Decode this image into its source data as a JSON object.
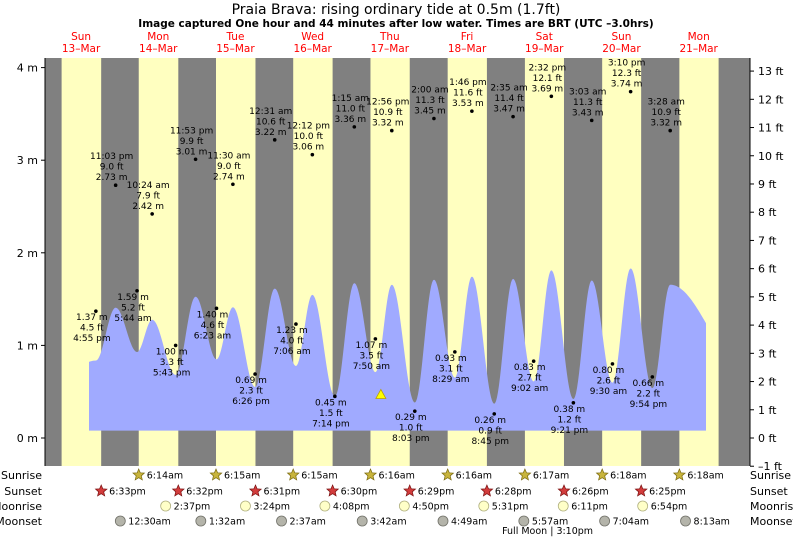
{
  "chart_data": {
    "type": "area",
    "title": "Praia Brava: rising  ordinary tide at 0.5m (1.7ft)",
    "subtitle": "Image captured One hour and 44 minutes after low water. Times are BRT (UTC –3.0hrs)",
    "left_axis": {
      "unit": "m",
      "range": [
        -0.1,
        4.2
      ],
      "ticks": [
        "0 m",
        "1 m",
        "2 m",
        "3 m",
        "4 m"
      ]
    },
    "right_axis": {
      "unit": "ft",
      "ticks": [
        "–1 ft",
        "0 ft",
        "1 ft",
        "2 ft",
        "3 ft",
        "4 ft",
        "5 ft",
        "6 ft",
        "7 ft",
        "8 ft",
        "9 ft",
        "10 ft",
        "11 ft",
        "12 ft",
        "13 ft"
      ]
    },
    "days": [
      {
        "name": "Sun",
        "date": "13–Mar"
      },
      {
        "name": "Mon",
        "date": "14–Mar"
      },
      {
        "name": "Tue",
        "date": "15–Mar"
      },
      {
        "name": "Wed",
        "date": "16–Mar"
      },
      {
        "name": "Thu",
        "date": "17–Mar"
      },
      {
        "name": "Fri",
        "date": "18–Mar"
      },
      {
        "name": "Sat",
        "date": "19–Mar"
      },
      {
        "name": "Sun",
        "date": "20–Mar"
      },
      {
        "name": "Mon",
        "date": "21–Mar"
      }
    ],
    "tides": [
      {
        "day": 0,
        "hour": 16.9,
        "m": 1.37,
        "lines": [
          "1.37 m",
          "4.5 ft",
          "4:55 pm"
        ]
      },
      {
        "day": 0,
        "hour": 23.05,
        "m": 2.73,
        "lines": [
          "11:03 pm",
          "9.0 ft",
          "2.73 m"
        ]
      },
      {
        "day": 1,
        "hour": 5.7,
        "m": 1.59,
        "lines": [
          "1.59 m",
          "5.2 ft",
          "5:44 am"
        ]
      },
      {
        "day": 1,
        "hour": 10.4,
        "m": 2.42,
        "lines": [
          "10:24 am",
          "7.9 ft",
          "2.42 m"
        ]
      },
      {
        "day": 1,
        "hour": 17.7,
        "m": 1.0,
        "lines": [
          "1.00 m",
          "3.3 ft",
          "5:43 pm"
        ]
      },
      {
        "day": 1,
        "hour": 23.9,
        "m": 3.01,
        "lines": [
          "11:53 pm",
          "9.9 ft",
          "3.01 m"
        ]
      },
      {
        "day": 2,
        "hour": 6.4,
        "m": 1.4,
        "lines": [
          "1.40 m",
          "4.6 ft",
          "6:23 am"
        ]
      },
      {
        "day": 2,
        "hour": 11.5,
        "m": 2.74,
        "lines": [
          "11:30 am",
          "9.0 ft",
          "2.74 m"
        ]
      },
      {
        "day": 2,
        "hour": 18.4,
        "m": 0.69,
        "lines": [
          "0.69 m",
          "2.3 ft",
          "6:26 pm"
        ]
      },
      {
        "day": 3,
        "hour": 0.5,
        "m": 3.22,
        "lines": [
          "12:31 am",
          "10.6 ft",
          "3.22 m"
        ]
      },
      {
        "day": 3,
        "hour": 7.1,
        "m": 1.23,
        "lines": [
          "1.23 m",
          "4.0 ft",
          "7:06 am"
        ]
      },
      {
        "day": 3,
        "hour": 12.2,
        "m": 3.06,
        "lines": [
          "12:12 pm",
          "10.0 ft",
          "3.06 m"
        ]
      },
      {
        "day": 3,
        "hour": 19.2,
        "m": 0.45,
        "lines": [
          "0.45 m",
          "1.5 ft",
          "7:14 pm"
        ]
      },
      {
        "day": 4,
        "hour": 1.25,
        "m": 3.36,
        "lines": [
          "1:15 am",
          "11.0 ft",
          "3.36 m"
        ]
      },
      {
        "day": 4,
        "hour": 7.8,
        "m": 1.07,
        "lines": [
          "1.07 m",
          "3.5 ft",
          "7:50 am"
        ]
      },
      {
        "day": 4,
        "hour": 12.9,
        "m": 3.32,
        "lines": [
          "12:56 pm",
          "10.9 ft",
          "3.32 m"
        ]
      },
      {
        "day": 4,
        "hour": 20.05,
        "m": 0.29,
        "lines": [
          "0.29 m",
          "1.0 ft",
          "8:03 pm"
        ]
      },
      {
        "day": 5,
        "hour": 2.0,
        "m": 3.45,
        "lines": [
          "2:00 am",
          "11.3 ft",
          "3.45 m"
        ]
      },
      {
        "day": 5,
        "hour": 8.5,
        "m": 0.93,
        "lines": [
          "0.93 m",
          "3.1 ft",
          "8:29 am"
        ]
      },
      {
        "day": 5,
        "hour": 13.8,
        "m": 3.53,
        "lines": [
          "1:46 pm",
          "11.6 ft",
          "3.53 m"
        ]
      },
      {
        "day": 5,
        "hour": 20.75,
        "m": 0.26,
        "lines": [
          "0.26 m",
          "0.9 ft",
          "8:45 pm"
        ]
      },
      {
        "day": 6,
        "hour": 2.6,
        "m": 3.47,
        "lines": [
          "2:35 am",
          "11.4 ft",
          "3.47 m"
        ]
      },
      {
        "day": 6,
        "hour": 9.0,
        "m": 0.83,
        "lines": [
          "0.83 m",
          "2.7 ft",
          "9:02 am"
        ]
      },
      {
        "day": 6,
        "hour": 14.5,
        "m": 3.69,
        "lines": [
          "2:32 pm",
          "12.1 ft",
          "3.69 m"
        ]
      },
      {
        "day": 6,
        "hour": 21.35,
        "m": 0.38,
        "lines": [
          "0.38 m",
          "1.2 ft",
          "9:21 pm"
        ]
      },
      {
        "day": 7,
        "hour": 3.05,
        "m": 3.43,
        "lines": [
          "3:03 am",
          "11.3 ft",
          "3.43 m"
        ]
      },
      {
        "day": 7,
        "hour": 9.5,
        "m": 0.8,
        "lines": [
          "0.80 m",
          "2.6 ft",
          "9:30 am"
        ]
      },
      {
        "day": 7,
        "hour": 15.15,
        "m": 3.74,
        "lines": [
          "3:10 pm",
          "12.3 ft",
          "3.74 m"
        ]
      },
      {
        "day": 7,
        "hour": 21.9,
        "m": 0.66,
        "lines": [
          "0.66 m",
          "2.2 ft",
          "9:54 pm"
        ]
      },
      {
        "day": 8,
        "hour": 3.45,
        "m": 3.32,
        "lines": [
          "3:28 am",
          "10.9 ft",
          "3.32 m"
        ]
      }
    ],
    "current_marker": {
      "day": 4,
      "hour": 9.5,
      "m": 0.5
    },
    "rows": {
      "sunrise": {
        "label": "Sunrise",
        "events": [
          {
            "day": 1,
            "hour": 6.23,
            "text": "6:14am"
          },
          {
            "day": 2,
            "hour": 6.25,
            "text": "6:15am"
          },
          {
            "day": 3,
            "hour": 6.25,
            "text": "6:15am"
          },
          {
            "day": 4,
            "hour": 6.27,
            "text": "6:16am"
          },
          {
            "day": 5,
            "hour": 6.27,
            "text": "6:16am"
          },
          {
            "day": 6,
            "hour": 6.28,
            "text": "6:17am"
          },
          {
            "day": 7,
            "hour": 6.3,
            "text": "6:18am"
          },
          {
            "day": 8,
            "hour": 6.3,
            "text": "6:18am"
          }
        ]
      },
      "sunset": {
        "label": "Sunset",
        "events": [
          {
            "day": 0,
            "hour": 18.55,
            "text": "6:33pm"
          },
          {
            "day": 1,
            "hour": 18.53,
            "text": "6:32pm"
          },
          {
            "day": 2,
            "hour": 18.52,
            "text": "6:31pm"
          },
          {
            "day": 3,
            "hour": 18.5,
            "text": "6:30pm"
          },
          {
            "day": 4,
            "hour": 18.48,
            "text": "6:29pm"
          },
          {
            "day": 5,
            "hour": 18.47,
            "text": "6:28pm"
          },
          {
            "day": 6,
            "hour": 18.43,
            "text": "6:26pm"
          },
          {
            "day": 7,
            "hour": 18.42,
            "text": "6:25pm"
          }
        ]
      },
      "moonrise": {
        "label": "Moonrise",
        "events": [
          {
            "day": 1,
            "hour": 14.6,
            "text": "2:37pm"
          },
          {
            "day": 2,
            "hour": 15.4,
            "text": "3:24pm"
          },
          {
            "day": 3,
            "hour": 16.1,
            "text": "4:08pm"
          },
          {
            "day": 4,
            "hour": 16.8,
            "text": "4:50pm"
          },
          {
            "day": 5,
            "hour": 17.5,
            "text": "5:31pm"
          },
          {
            "day": 6,
            "hour": 18.2,
            "text": "6:11pm"
          },
          {
            "day": 7,
            "hour": 18.9,
            "text": "6:54pm"
          }
        ]
      },
      "moonset": {
        "label": "Moonset",
        "events": [
          {
            "day": 1,
            "hour": 0.5,
            "text": "12:30am"
          },
          {
            "day": 2,
            "hour": 1.53,
            "text": "1:32am"
          },
          {
            "day": 3,
            "hour": 2.62,
            "text": "2:37am"
          },
          {
            "day": 4,
            "hour": 3.7,
            "text": "3:42am"
          },
          {
            "day": 5,
            "hour": 4.82,
            "text": "4:49am"
          },
          {
            "day": 6,
            "hour": 5.95,
            "text": "5:57am"
          },
          {
            "day": 7,
            "hour": 7.07,
            "text": "7:04am"
          },
          {
            "day": 8,
            "hour": 8.22,
            "text": "8:13am"
          }
        ]
      }
    },
    "moon_phase": {
      "day": 6,
      "hour": 15.2,
      "text": "Full Moon | 3:10pm"
    },
    "colors": {
      "day": "#ffffc0",
      "night": "#808080",
      "water": "#a0aaff",
      "sun": "#c8b43c",
      "sunset": "#d23c3c",
      "moonrise": "#ffffc8",
      "moonset": "#b4b4aa",
      "title_day": "#ff0000"
    }
  }
}
